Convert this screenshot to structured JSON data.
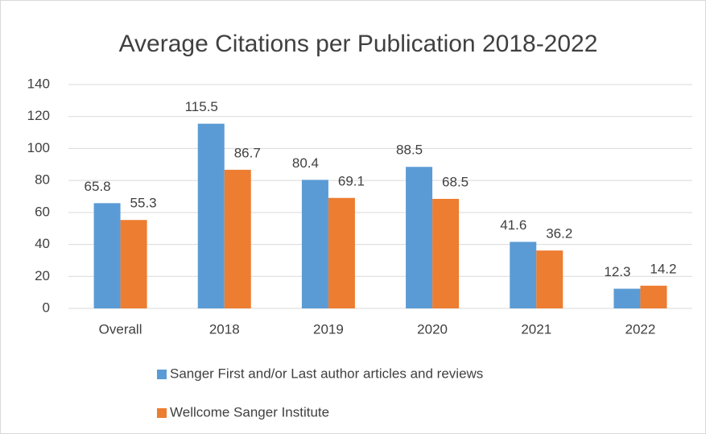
{
  "chart_data": {
    "type": "bar",
    "title": "Average Citations per Publication  2018-2022",
    "categories": [
      "Overall",
      "2018",
      "2019",
      "2020",
      "2021",
      "2022"
    ],
    "series": [
      {
        "name": "Sanger First and/or Last author articles and reviews",
        "color": "#5b9bd5",
        "values": [
          65.8,
          115.5,
          80.4,
          88.5,
          41.6,
          12.3
        ]
      },
      {
        "name": "Wellcome Sanger Institute",
        "color": "#ed7d31",
        "values": [
          55.3,
          86.7,
          69.1,
          68.5,
          36.2,
          14.2
        ]
      }
    ],
    "ylim": [
      0,
      140
    ],
    "yticks": [
      0,
      20,
      40,
      60,
      80,
      100,
      120,
      140
    ],
    "grid": true,
    "legend": "bottom"
  }
}
